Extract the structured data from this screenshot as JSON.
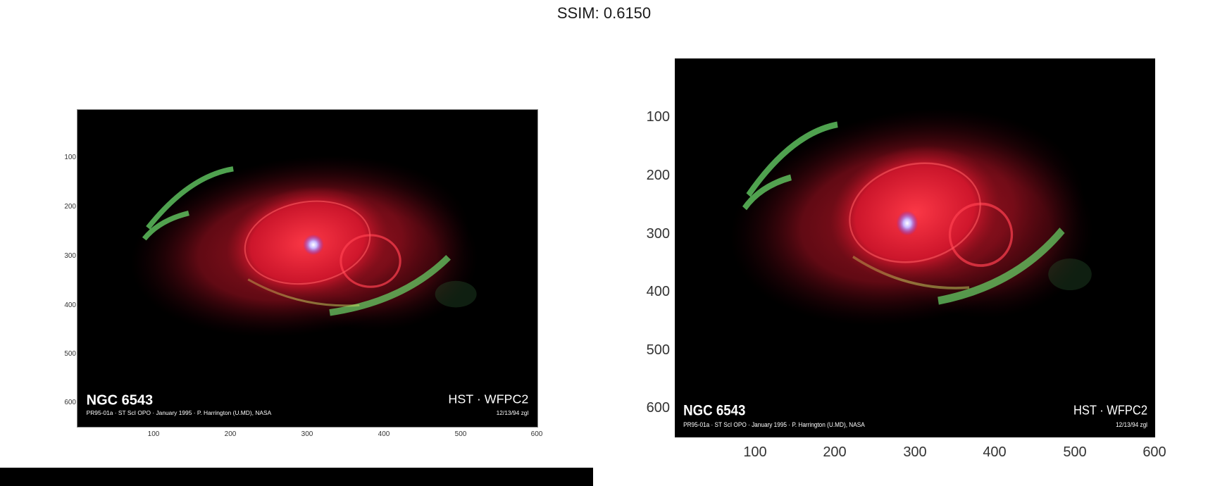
{
  "figure": {
    "title": "SSIM: 0.6150"
  },
  "left_panel": {
    "yticks": [
      "100",
      "200",
      "300",
      "400",
      "500",
      "600"
    ],
    "xticks": [
      "100",
      "200",
      "300",
      "400",
      "500",
      "600"
    ],
    "caption_name": "NGC 6543",
    "caption_credit": "PR95-01a · ST ScI OPO · January 1995 · P. Harrington (U.MD), NASA",
    "caption_instrument": "HST · WFPC2",
    "caption_date": "12/13/94 zgl"
  },
  "right_panel": {
    "yticks": [
      "100",
      "200",
      "300",
      "400",
      "500",
      "600"
    ],
    "xticks": [
      "100",
      "200",
      "300",
      "400",
      "500",
      "600"
    ],
    "caption_name": "NGC 6543",
    "caption_credit": "PR95-01a · ST ScI OPO · January 1995 · P. Harrington (U.MD), NASA",
    "caption_instrument": "HST · WFPC2",
    "caption_date": "12/13/94 zgl"
  },
  "colors": {
    "background": "#000000",
    "nebula_red": "#e01830",
    "nebula_green": "#6ad86a",
    "star_core": "#c8b8ff"
  }
}
